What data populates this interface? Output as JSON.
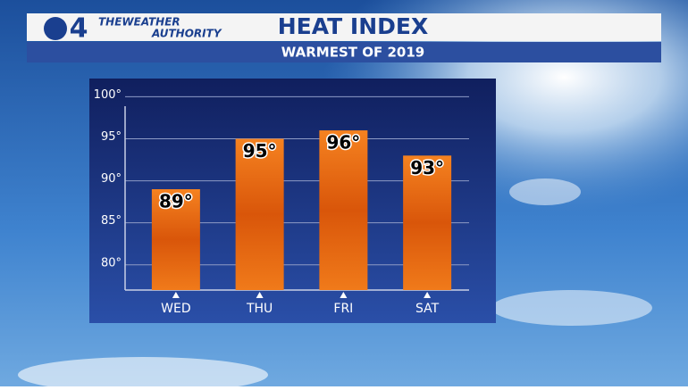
{
  "logo": {
    "channel": "4",
    "line1": "THEWEATHER",
    "line2": "AUTHORITY"
  },
  "chart_data": {
    "type": "bar",
    "title": "HEAT INDEX",
    "subtitle": "WARMEST OF 2019",
    "categories": [
      "WED",
      "THU",
      "FRI",
      "SAT"
    ],
    "values": [
      89,
      95,
      96,
      93
    ],
    "value_labels": [
      "89°",
      "95°",
      "96°",
      "93°"
    ],
    "color": "#e8680f",
    "ylim": [
      77,
      101
    ],
    "yticks": [
      {
        "value": 80,
        "label": "80°"
      },
      {
        "value": 85,
        "label": "85°"
      },
      {
        "value": 90,
        "label": "90°"
      },
      {
        "value": 95,
        "label": "95°"
      },
      {
        "value": 100,
        "label": "100°"
      }
    ],
    "grid": true
  }
}
